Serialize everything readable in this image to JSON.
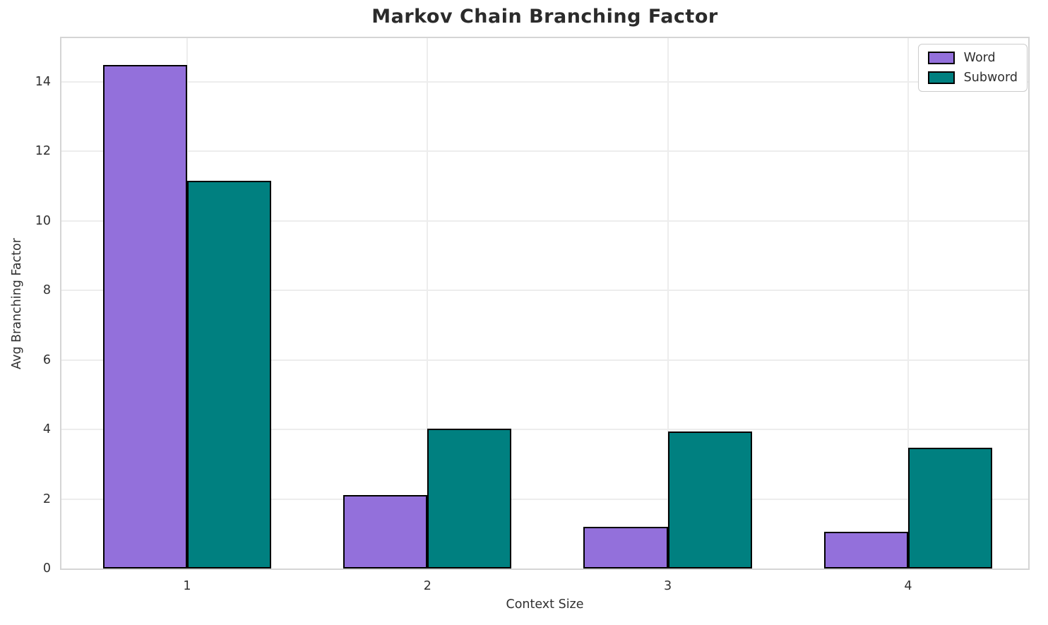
{
  "chart_data": {
    "type": "bar",
    "title": "Markov Chain Branching Factor",
    "xlabel": "Context Size",
    "ylabel": "Avg Branching Factor",
    "categories": [
      "1",
      "2",
      "3",
      "4"
    ],
    "series": [
      {
        "name": "Word",
        "color": "#9370DB",
        "values": [
          14.48,
          2.12,
          1.2,
          1.05
        ]
      },
      {
        "name": "Subword",
        "color": "#008080",
        "values": [
          11.15,
          4.02,
          3.93,
          3.48
        ]
      }
    ],
    "ylim": [
      0,
      15.25
    ],
    "yticks": [
      0,
      2,
      4,
      6,
      8,
      10,
      12,
      14
    ],
    "grid": true,
    "legend_position": "top-right",
    "bar_edge_color": "#000000",
    "bar_width_fraction": 0.35
  }
}
